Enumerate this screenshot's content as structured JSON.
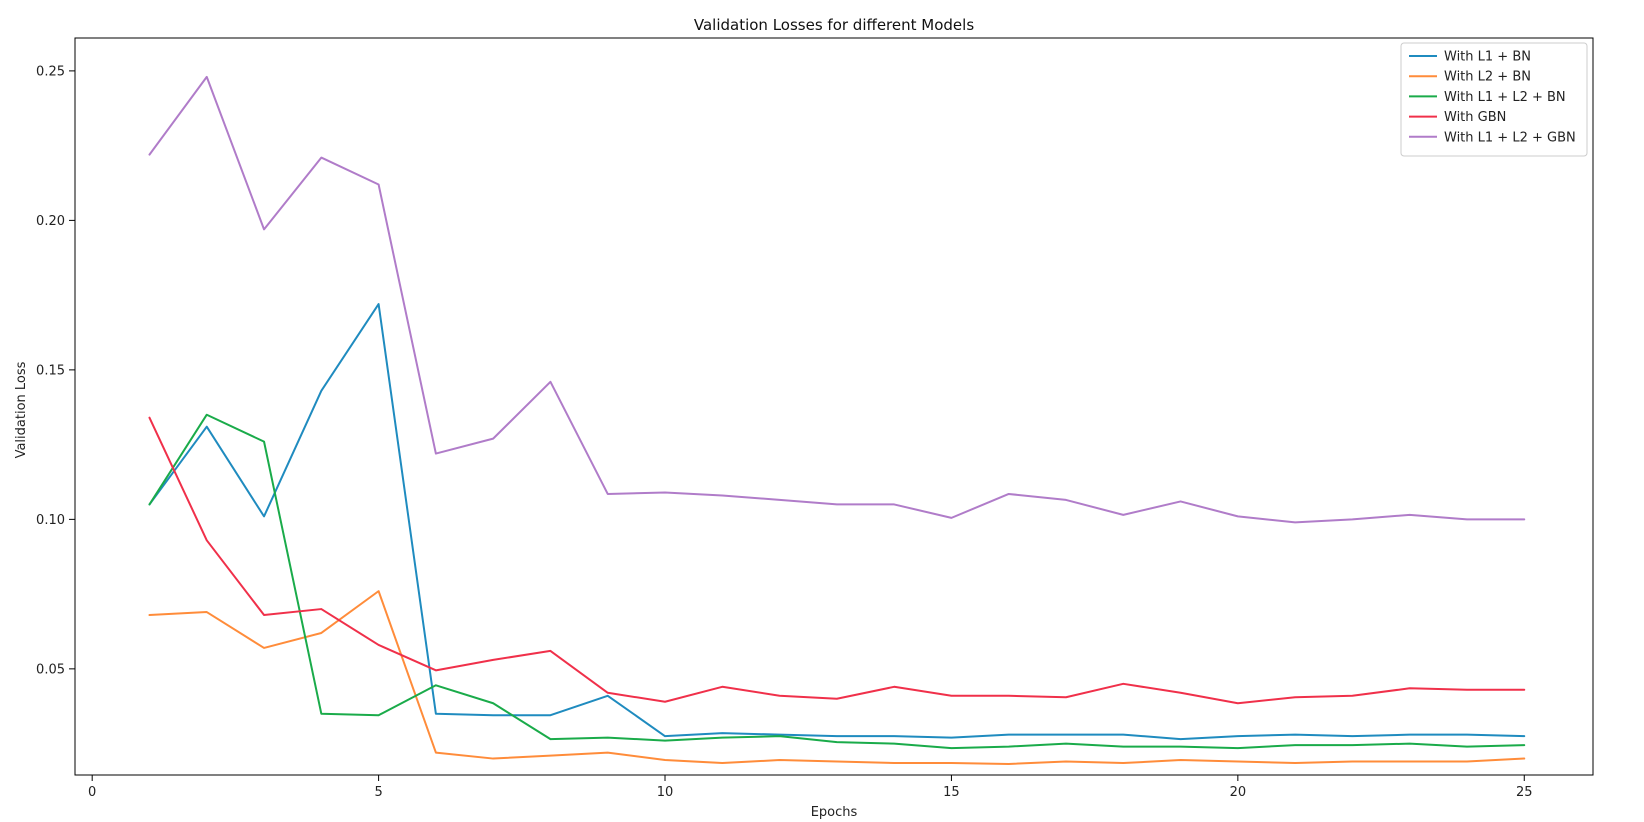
{
  "chart_data": {
    "type": "line",
    "title": "Validation Losses for different Models",
    "xlabel": "Epochs",
    "ylabel": "Validation Loss",
    "xlim": [
      -0.3,
      26.2
    ],
    "ylim": [
      0.0145,
      0.261
    ],
    "x_ticks": [
      0,
      5,
      10,
      15,
      20,
      25
    ],
    "y_ticks": [
      0.05,
      0.1,
      0.15,
      0.2,
      0.25
    ],
    "y_tick_labels": [
      "0.05",
      "0.10",
      "0.15",
      "0.20",
      "0.25"
    ],
    "grid": false,
    "legend_position": "top-right",
    "x": [
      1,
      2,
      3,
      4,
      5,
      6,
      7,
      8,
      9,
      10,
      11,
      12,
      13,
      14,
      15,
      16,
      17,
      18,
      19,
      20,
      21,
      22,
      23,
      24,
      25
    ],
    "series": [
      {
        "name": "With L1 + BN",
        "color": "#1f8bbf",
        "values": [
          0.105,
          0.131,
          0.101,
          0.143,
          0.172,
          0.035,
          0.0345,
          0.0345,
          0.041,
          0.0275,
          0.0285,
          0.028,
          0.0275,
          0.0275,
          0.027,
          0.028,
          0.028,
          0.028,
          0.0265,
          0.0275,
          0.028,
          0.0275,
          0.028,
          0.028,
          0.0275
        ]
      },
      {
        "name": "With L2 + BN",
        "color": "#ff8c3a",
        "values": [
          0.068,
          0.069,
          0.057,
          0.062,
          0.076,
          0.022,
          0.02,
          0.021,
          0.022,
          0.0195,
          0.0185,
          0.0195,
          0.019,
          0.0185,
          0.0185,
          0.0182,
          0.019,
          0.0185,
          0.0195,
          0.019,
          0.0185,
          0.019,
          0.019,
          0.019,
          0.02
        ]
      },
      {
        "name": "With L1 + L2 + BN",
        "color": "#1aab4a",
        "values": [
          0.105,
          0.135,
          0.126,
          0.035,
          0.0345,
          0.0445,
          0.0385,
          0.0265,
          0.027,
          0.026,
          0.027,
          0.0275,
          0.0255,
          0.025,
          0.0235,
          0.024,
          0.025,
          0.024,
          0.024,
          0.0235,
          0.0245,
          0.0245,
          0.025,
          0.024,
          0.0245
        ]
      },
      {
        "name": "With GBN",
        "color": "#f0304a",
        "values": [
          0.134,
          0.093,
          0.068,
          0.07,
          0.058,
          0.0495,
          0.053,
          0.056,
          0.042,
          0.039,
          0.044,
          0.041,
          0.04,
          0.044,
          0.041,
          0.041,
          0.0405,
          0.045,
          0.042,
          0.0385,
          0.0405,
          0.041,
          0.0435,
          0.043,
          0.043
        ]
      },
      {
        "name": "With L1 + L2 + GBN",
        "color": "#b07cc9",
        "values": [
          0.222,
          0.248,
          0.197,
          0.221,
          0.212,
          0.122,
          0.127,
          0.146,
          0.1085,
          0.109,
          0.108,
          0.1065,
          0.105,
          0.105,
          0.1005,
          0.1085,
          0.1065,
          0.1015,
          0.106,
          0.101,
          0.099,
          0.1,
          0.1015,
          0.1,
          0.1
        ]
      }
    ]
  }
}
